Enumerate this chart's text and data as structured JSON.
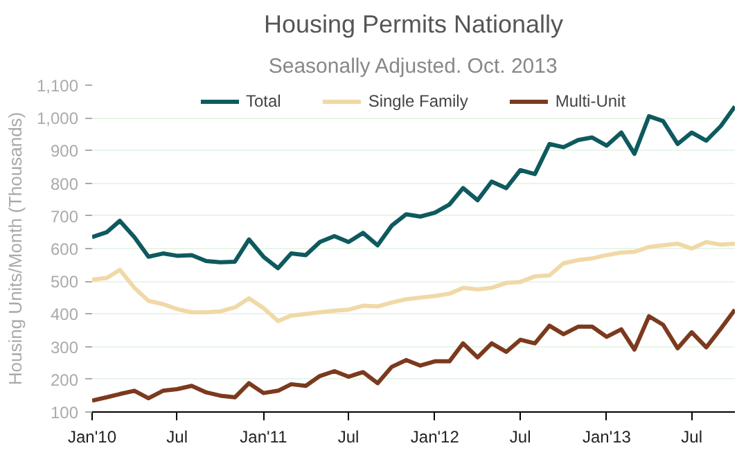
{
  "chart_data": {
    "type": "line",
    "title": "Housing Permits Nationally",
    "subtitle": "Seasonally Adjusted. Oct. 2013",
    "ylabel": "Housing Units/Month (Thousands)",
    "x": [
      "2010-01",
      "2010-02",
      "2010-03",
      "2010-04",
      "2010-05",
      "2010-06",
      "2010-07",
      "2010-08",
      "2010-09",
      "2010-10",
      "2010-11",
      "2010-12",
      "2011-01",
      "2011-02",
      "2011-03",
      "2011-04",
      "2011-05",
      "2011-06",
      "2011-07",
      "2011-08",
      "2011-09",
      "2011-10",
      "2011-11",
      "2011-12",
      "2012-01",
      "2012-02",
      "2012-03",
      "2012-04",
      "2012-05",
      "2012-06",
      "2012-07",
      "2012-08",
      "2012-09",
      "2012-10",
      "2012-11",
      "2012-12",
      "2013-01",
      "2013-02",
      "2013-03",
      "2013-04",
      "2013-05",
      "2013-06",
      "2013-07",
      "2013-08",
      "2013-09",
      "2013-10"
    ],
    "series": [
      {
        "name": "Total",
        "color": "#0e5a5e",
        "values": [
          635,
          650,
          685,
          635,
          575,
          585,
          578,
          580,
          562,
          558,
          560,
          628,
          575,
          540,
          585,
          580,
          620,
          638,
          620,
          648,
          610,
          670,
          705,
          698,
          710,
          735,
          785,
          748,
          805,
          785,
          840,
          828,
          920,
          910,
          932,
          940,
          915,
          955,
          890,
          1005,
          990,
          920,
          955,
          930,
          975,
          1035
        ]
      },
      {
        "name": "Single Family",
        "color": "#f0d9a6",
        "values": [
          505,
          510,
          535,
          480,
          440,
          430,
          415,
          405,
          405,
          408,
          420,
          448,
          418,
          378,
          395,
          400,
          405,
          410,
          413,
          425,
          423,
          435,
          445,
          450,
          455,
          462,
          480,
          475,
          480,
          495,
          498,
          515,
          518,
          555,
          565,
          570,
          580,
          588,
          590,
          605,
          610,
          615,
          600,
          620,
          612,
          615
        ]
      },
      {
        "name": "Multi-Unit",
        "color": "#7b3a1e",
        "values": [
          135,
          145,
          155,
          165,
          142,
          165,
          170,
          180,
          160,
          150,
          145,
          188,
          158,
          165,
          185,
          180,
          210,
          225,
          208,
          222,
          188,
          238,
          259,
          242,
          255,
          255,
          310,
          267,
          310,
          284,
          321,
          310,
          364,
          338,
          361,
          361,
          330,
          353,
          291,
          393,
          367,
          295,
          344,
          298,
          355,
          413
        ]
      }
    ],
    "xlim": [
      "2010-01",
      "2013-10"
    ],
    "xticks": [
      {
        "value": "2010-01",
        "label": "Jan'10"
      },
      {
        "value": "2010-07",
        "label": "Jul"
      },
      {
        "value": "2011-01",
        "label": "Jan'11"
      },
      {
        "value": "2011-07",
        "label": "Jul"
      },
      {
        "value": "2012-01",
        "label": "Jan'12"
      },
      {
        "value": "2012-07",
        "label": "Jul"
      },
      {
        "value": "2013-01",
        "label": "Jan'13"
      },
      {
        "value": "2013-07",
        "label": "Jul"
      }
    ],
    "ylim": [
      100,
      1100
    ],
    "yticks": [
      100,
      200,
      300,
      400,
      500,
      600,
      700,
      800,
      900,
      {
        "value": 1000,
        "label": "1,000"
      },
      {
        "value": 1100,
        "label": "1,100"
      }
    ],
    "grid": "y",
    "legend": "top",
    "line_style": "solid"
  }
}
